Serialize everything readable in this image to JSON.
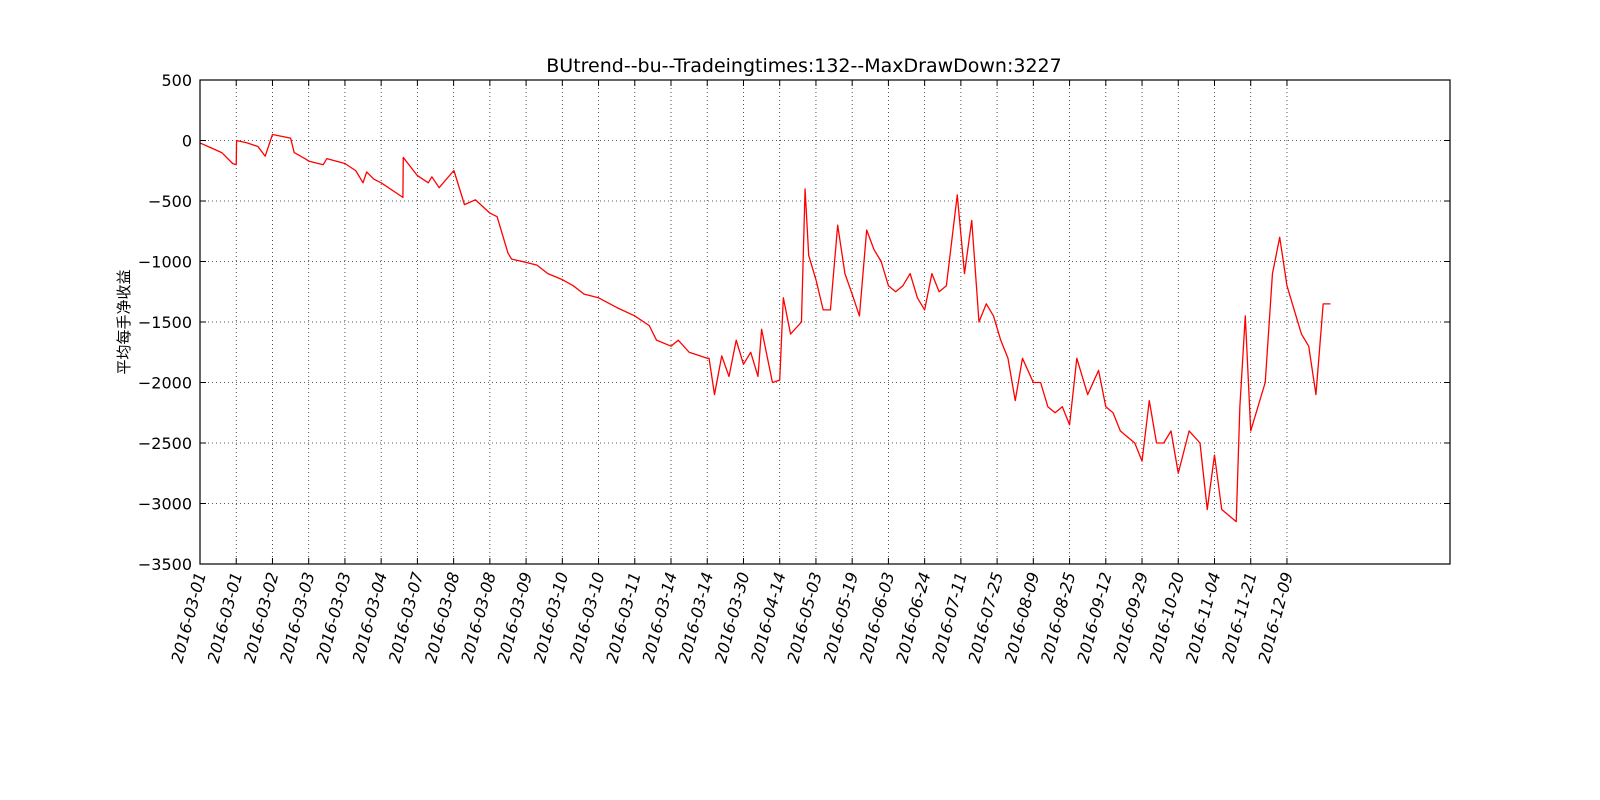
{
  "chart_data": {
    "type": "line",
    "title": "BUtrend--bu--Tradeingtimes:132--MaxDrawDown:3227",
    "xlabel": "",
    "ylabel": "平均每手净收益",
    "ylim": [
      -3500,
      500
    ],
    "yticks": [
      "500",
      "0",
      "−500",
      "−1000",
      "−1500",
      "−2000",
      "−2500",
      "−3000",
      "−3500"
    ],
    "ytick_values": [
      500,
      0,
      -500,
      -1000,
      -1500,
      -2000,
      -2500,
      -3000,
      -3500
    ],
    "xlim": [
      0,
      34.5
    ],
    "xticks": [
      "2016-03-01",
      "2016-03-01",
      "2016-03-02",
      "2016-03-03",
      "2016-03-03",
      "2016-03-04",
      "2016-03-07",
      "2016-03-08",
      "2016-03-08",
      "2016-03-09",
      "2016-03-10",
      "2016-03-10",
      "2016-03-11",
      "2016-03-14",
      "2016-03-14",
      "2016-03-30",
      "2016-04-14",
      "2016-05-03",
      "2016-05-19",
      "2016-06-03",
      "2016-06-24",
      "2016-07-11",
      "2016-07-25",
      "2016-08-09",
      "2016-08-25",
      "2016-09-12",
      "2016-09-29",
      "2016-10-20",
      "2016-11-04",
      "2016-11-21",
      "2016-12-09"
    ],
    "grid": true,
    "series": [
      {
        "color": "#ff0000",
        "x": [
          0,
          0.3,
          0.6,
          0.9,
          1.0,
          1.01,
          1.3,
          1.6,
          1.8,
          2.0,
          2.5,
          2.6,
          2.9,
          3.0,
          3.4,
          3.5,
          4.0,
          4.3,
          4.5,
          4.6,
          4.8,
          5.0,
          5.6,
          5.61,
          6.0,
          6.3,
          6.4,
          6.6,
          7.0,
          7.01,
          7.3,
          7.6,
          8.0,
          8.2,
          8.5,
          8.6,
          8.9,
          9.3,
          9.6,
          10.0,
          10.3,
          10.6,
          11.0,
          11.5,
          12.0,
          12.4,
          12.6,
          13.0,
          13.2,
          13.5,
          14.0,
          14.05,
          14.2,
          14.4,
          14.6,
          14.8,
          15.0,
          15.2,
          15.4,
          15.5,
          15.8,
          16.0,
          16.1,
          16.3,
          16.6,
          16.7,
          16.8,
          17.0,
          17.2,
          17.4,
          17.6,
          17.8,
          18.0,
          18.2,
          18.4,
          18.6,
          18.8,
          19.0,
          19.2,
          19.4,
          19.6,
          19.8,
          20.0,
          20.2,
          20.4,
          20.6,
          20.9,
          21.1,
          21.3,
          21.5,
          21.7,
          21.9,
          22.1,
          22.3,
          22.5,
          22.7,
          23.0,
          23.2,
          23.4,
          23.6,
          23.8,
          24.0,
          24.2,
          24.5,
          24.8,
          25.0,
          25.2,
          25.4,
          25.6,
          25.8,
          26.0,
          26.2,
          26.4,
          26.6,
          26.8,
          27.0,
          27.3,
          27.6,
          27.8,
          28.0,
          28.2,
          28.4,
          28.6,
          28.7,
          28.85,
          29.0,
          29.2,
          29.4,
          29.6,
          29.8,
          30.0,
          30.2,
          30.4,
          30.6,
          30.8,
          31.0,
          31.2
        ],
        "y": [
          -20,
          -60,
          -100,
          -190,
          -200,
          0,
          -20,
          -50,
          -130,
          50,
          20,
          -100,
          -150,
          -170,
          -200,
          -150,
          -190,
          -250,
          -350,
          -260,
          -320,
          -350,
          -470,
          -140,
          -290,
          -350,
          -300,
          -390,
          -250,
          -250,
          -530,
          -490,
          -600,
          -630,
          -930,
          -980,
          -1000,
          -1030,
          -1100,
          -1150,
          -1200,
          -1270,
          -1300,
          -1380,
          -1450,
          -1530,
          -1650,
          -1700,
          -1650,
          -1750,
          -1800,
          -1800,
          -2100,
          -1780,
          -1950,
          -1650,
          -1850,
          -1750,
          -1950,
          -1560,
          -2000,
          -1980,
          -1300,
          -1600,
          -1500,
          -400,
          -950,
          -1150,
          -1400,
          -1400,
          -700,
          -1100,
          -1270,
          -1450,
          -740,
          -900,
          -1000,
          -1200,
          -1250,
          -1200,
          -1100,
          -1300,
          -1400,
          -1100,
          -1250,
          -1200,
          -450,
          -1100,
          -660,
          -1500,
          -1350,
          -1450,
          -1650,
          -1800,
          -2150,
          -1800,
          -2000,
          -2000,
          -2200,
          -2250,
          -2200,
          -2350,
          -1800,
          -2100,
          -1900,
          -2200,
          -2250,
          -2400,
          -2450,
          -2500,
          -2650,
          -2150,
          -2500,
          -2500,
          -2400,
          -2750,
          -2400,
          -2500,
          -3050,
          -2600,
          -3050,
          -3100,
          -3150,
          -2200,
          -1450,
          -2400,
          -2200,
          -2000,
          -1100,
          -800,
          -1200,
          -1400,
          -1600,
          -1700,
          -2100,
          -1350,
          -1350
        ]
      }
    ]
  }
}
